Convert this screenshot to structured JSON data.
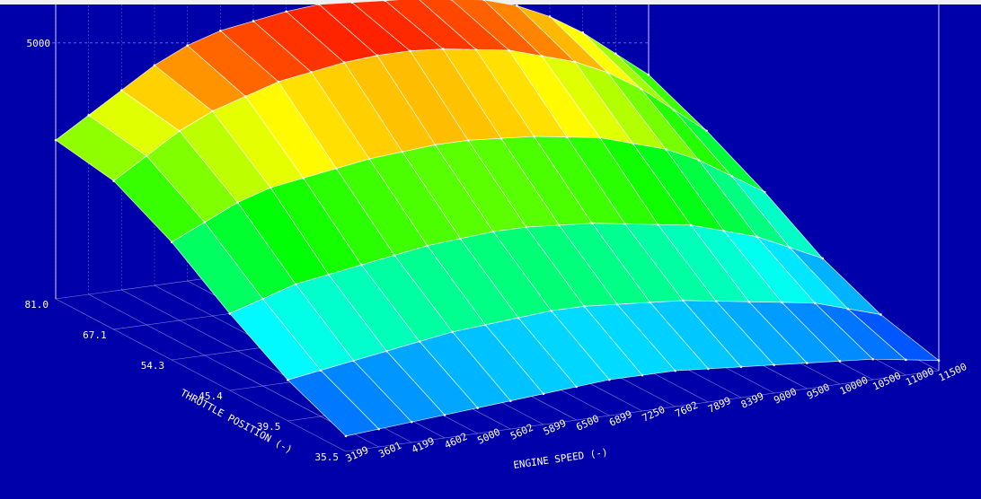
{
  "chart_data": {
    "type": "surface",
    "x_label": "ENGINE SPEED (-)",
    "y_label": "THROTTLE POSITION (-)",
    "categories": [
      "3199",
      "3601",
      "4199",
      "4602",
      "5000",
      "5602",
      "5899",
      "6500",
      "6899",
      "7250",
      "7602",
      "7899",
      "8399",
      "9000",
      "9500",
      "10000",
      "10500",
      "11000",
      "11500"
    ],
    "rows": [
      "35.5",
      "39.5",
      "45.4",
      "54.3",
      "67.1",
      "81.0"
    ],
    "z": [
      [
        300,
        350,
        400,
        450,
        500,
        550,
        600,
        650,
        700,
        700,
        700,
        650,
        600,
        550,
        500,
        450,
        400,
        300,
        200
      ],
      [
        800,
        900,
        1000,
        1100,
        1200,
        1300,
        1350,
        1400,
        1450,
        1450,
        1400,
        1350,
        1300,
        1200,
        1100,
        1000,
        900,
        700,
        500
      ],
      [
        1500,
        1700,
        1900,
        2000,
        2100,
        2200,
        2300,
        2350,
        2400,
        2400,
        2350,
        2300,
        2200,
        2100,
        2000,
        1800,
        1600,
        1300,
        1000
      ],
      [
        2300,
        2600,
        2900,
        3100,
        3200,
        3300,
        3400,
        3450,
        3500,
        3500,
        3450,
        3400,
        3300,
        3200,
        3000,
        2800,
        2500,
        2100,
        1700
      ],
      [
        2900,
        3300,
        3700,
        4000,
        4200,
        4400,
        4500,
        4600,
        4650,
        4650,
        4600,
        4500,
        4400,
        4200,
        4000,
        3700,
        3300,
        2800,
        2300
      ],
      [
        3100,
        3500,
        3900,
        4300,
        4600,
        4800,
        4900,
        5000,
        5050,
        5000,
        4950,
        4900,
        4800,
        4700,
        4500,
        4200,
        3800,
        3300,
        2800
      ]
    ],
    "zlim": [
      0,
      5750
    ],
    "zticks": [
      5000
    ],
    "background_color": "#0000aa",
    "grid_color": "#ffffff"
  }
}
